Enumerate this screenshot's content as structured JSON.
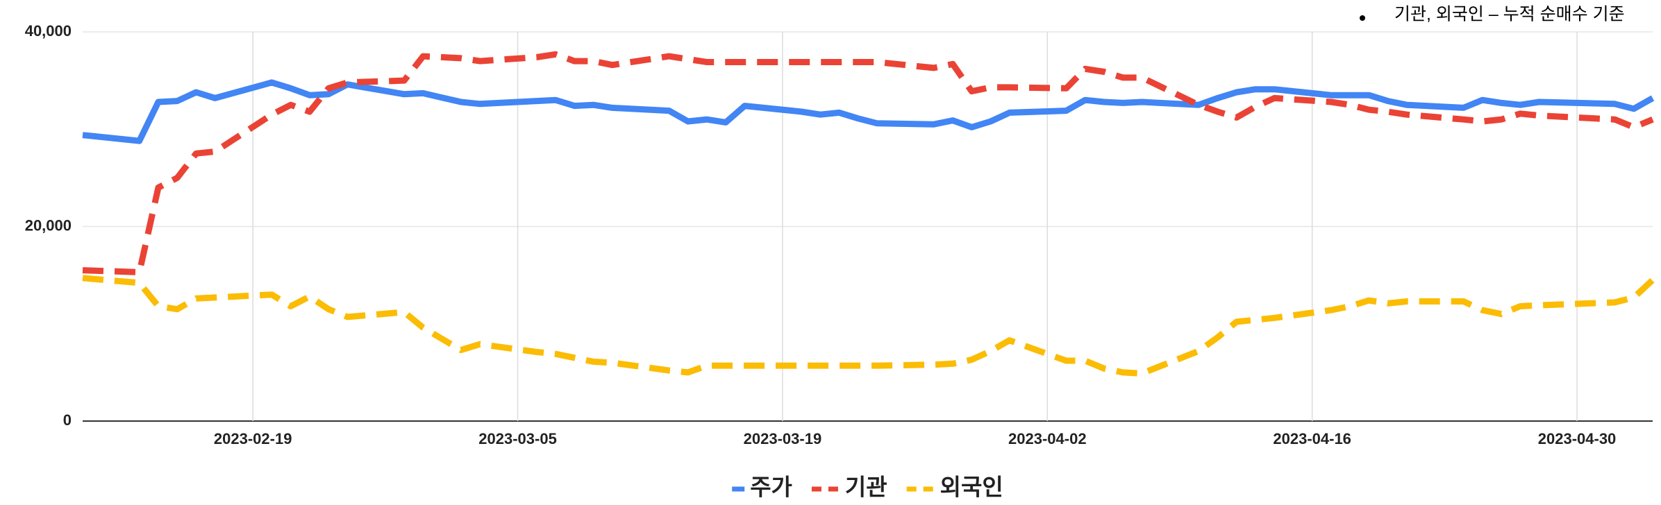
{
  "chart_data": {
    "type": "line",
    "annotation": "기관, 외국인 – 누적 순매수 기준",
    "x": [
      "2023-02-10",
      "2023-02-13",
      "2023-02-14",
      "2023-02-15",
      "2023-02-16",
      "2023-02-17",
      "2023-02-20",
      "2023-02-21",
      "2023-02-22",
      "2023-02-23",
      "2023-02-24",
      "2023-02-27",
      "2023-02-28",
      "2023-03-02",
      "2023-03-03",
      "2023-03-06",
      "2023-03-07",
      "2023-03-08",
      "2023-03-09",
      "2023-03-10",
      "2023-03-13",
      "2023-03-14",
      "2023-03-15",
      "2023-03-16",
      "2023-03-17",
      "2023-03-20",
      "2023-03-21",
      "2023-03-22",
      "2023-03-23",
      "2023-03-24",
      "2023-03-27",
      "2023-03-28",
      "2023-03-29",
      "2023-03-30",
      "2023-03-31",
      "2023-04-03",
      "2023-04-04",
      "2023-04-05",
      "2023-04-06",
      "2023-04-07",
      "2023-04-10",
      "2023-04-11",
      "2023-04-12",
      "2023-04-13",
      "2023-04-14",
      "2023-04-17",
      "2023-04-18",
      "2023-04-19",
      "2023-04-20",
      "2023-04-21",
      "2023-04-24",
      "2023-04-25",
      "2023-04-26",
      "2023-04-27",
      "2023-04-28",
      "2023-05-02",
      "2023-05-03",
      "2023-05-04"
    ],
    "series": [
      {
        "name": "주가",
        "color": "#4285f4",
        "dashed": false,
        "values": [
          29400,
          28800,
          32800,
          32900,
          33800,
          33200,
          34800,
          34200,
          33500,
          33600,
          34600,
          33600,
          33700,
          32800,
          32600,
          32900,
          33000,
          32400,
          32500,
          32200,
          31900,
          30800,
          31000,
          30700,
          32400,
          31800,
          31500,
          31700,
          31100,
          30600,
          30500,
          30900,
          30200,
          30800,
          31700,
          31900,
          33000,
          32800,
          32700,
          32800,
          32500,
          33200,
          33800,
          34100,
          34100,
          33500,
          33500,
          33500,
          32900,
          32500,
          32200,
          33000,
          32700,
          32500,
          32800,
          32600,
          32100,
          33200
        ]
      },
      {
        "name": "기관",
        "color": "#ea4335",
        "dashed": true,
        "values": [
          15500,
          15300,
          24000,
          25000,
          27500,
          27700,
          31500,
          32500,
          31800,
          34200,
          34800,
          35000,
          37500,
          37300,
          37000,
          37400,
          37700,
          37000,
          37000,
          36600,
          37500,
          37200,
          36900,
          36900,
          36900,
          36900,
          36900,
          36900,
          36900,
          36900,
          36300,
          36700,
          33900,
          34300,
          34300,
          34200,
          36200,
          35900,
          35300,
          35300,
          32500,
          31800,
          31200,
          32300,
          33200,
          32800,
          32500,
          32000,
          31800,
          31500,
          31000,
          30800,
          31000,
          31600,
          31400,
          31000,
          30200,
          31000
        ]
      },
      {
        "name": "외국인",
        "color": "#fbbc04",
        "dashed": true,
        "values": [
          14700,
          14200,
          11800,
          11500,
          12600,
          12700,
          13000,
          11800,
          12800,
          11500,
          10700,
          11200,
          9600,
          7300,
          7900,
          7100,
          6900,
          6500,
          6100,
          6000,
          5200,
          5000,
          5700,
          5700,
          5700,
          5700,
          5700,
          5700,
          5700,
          5700,
          5800,
          5900,
          6300,
          7200,
          8300,
          6200,
          6200,
          5400,
          5000,
          4900,
          7200,
          8600,
          10200,
          10400,
          10600,
          11400,
          11800,
          12400,
          12100,
          12300,
          12300,
          11400,
          11000,
          11800,
          11900,
          12200,
          12700,
          14500
        ]
      }
    ],
    "xlim": [
      "2023-02-10",
      "2023-05-04"
    ],
    "xticks": [
      "2023-02-19",
      "2023-03-05",
      "2023-03-19",
      "2023-04-02",
      "2023-04-16",
      "2023-04-30"
    ],
    "ylim": [
      0,
      40000
    ],
    "yticks": [
      0,
      {
        "value": 20000,
        "label": "20,000"
      },
      {
        "value": 40000,
        "label": "40,000"
      }
    ],
    "grid": true,
    "legend": "bottom"
  }
}
